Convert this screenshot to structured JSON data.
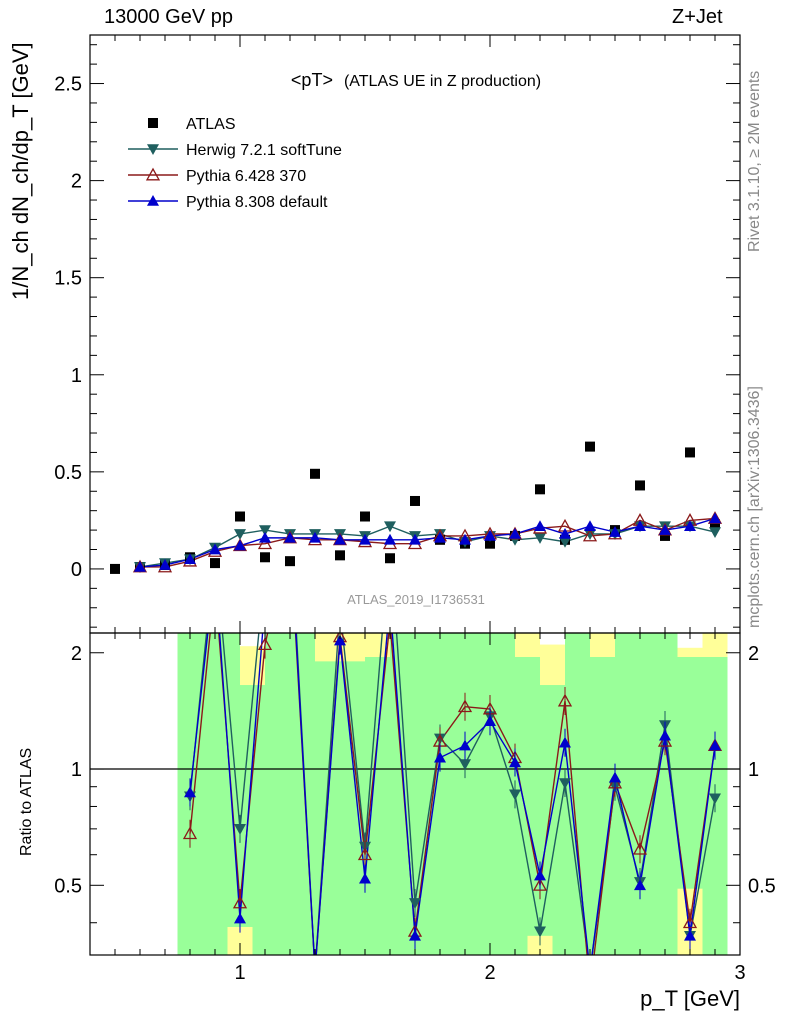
{
  "header": {
    "left": "13000 GeV pp",
    "right": "Z+Jet"
  },
  "side_labels": {
    "rivet": "Rivet 3.1.10, ≥ 2M events",
    "mcplots": "mcplots.cern.ch [arXiv:1306.3436]"
  },
  "chart_data": {
    "type": "scatter",
    "title_main": "<pT>",
    "title_sub": "(ATLAS UE in Z production)",
    "analysis_label": "ATLAS_2019_I1736531",
    "upper_ylabel": "1/N_ch dN_ch/dp_T [GeV]",
    "ratio_ylabel": "Ratio to ATLAS",
    "xlabel": "p_T [GeV]",
    "xlim": [
      0.4,
      3.0
    ],
    "upper_ylim": [
      -0.33,
      2.75
    ],
    "ratio_ylim": [
      0.33,
      2.25
    ],
    "x_ticks": [
      "1",
      "2",
      "3"
    ],
    "upper_y_ticks": [
      "0",
      "0.5",
      "1",
      "1.5",
      "2",
      "2.5"
    ],
    "ratio_y_ticks": [
      "0.5",
      "1",
      "2"
    ],
    "x": [
      0.5,
      0.6,
      0.7,
      0.8,
      0.9,
      1.0,
      1.1,
      1.2,
      1.3,
      1.4,
      1.5,
      1.6,
      1.7,
      1.8,
      1.9,
      2.0,
      2.1,
      2.2,
      2.3,
      2.4,
      2.5,
      2.6,
      2.7,
      2.8,
      2.9
    ],
    "series": [
      {
        "name": "ATLAS",
        "marker": "square",
        "color": "#000000",
        "values": [
          0.0,
          0.01,
          0.02,
          0.06,
          0.03,
          0.27,
          0.06,
          0.04,
          0.49,
          0.07,
          0.27,
          0.055,
          0.35,
          0.15,
          0.13,
          0.13,
          0.17,
          0.41,
          0.15,
          0.63,
          0.2,
          0.43,
          0.17,
          0.6,
          0.23
        ]
      },
      {
        "name": "Herwig 7.2.1 softTune",
        "marker": "triangle-down",
        "color": "#1f5f5f",
        "values": [
          null,
          0.01,
          0.03,
          0.05,
          0.11,
          0.18,
          0.2,
          0.18,
          0.18,
          0.18,
          0.17,
          0.22,
          0.17,
          0.18,
          0.14,
          0.17,
          0.15,
          0.16,
          0.14,
          0.18,
          0.18,
          0.22,
          0.22,
          0.22,
          0.19
        ]
      },
      {
        "name": "Pythia 6.428 370",
        "marker": "triangle-open",
        "color": "#8b1a1a",
        "values": [
          null,
          0.01,
          0.01,
          0.04,
          0.09,
          0.12,
          0.13,
          0.16,
          0.15,
          0.15,
          0.14,
          0.13,
          0.13,
          0.17,
          0.17,
          0.18,
          0.18,
          0.21,
          0.22,
          0.17,
          0.18,
          0.25,
          0.2,
          0.25,
          0.26
        ]
      },
      {
        "name": "Pythia 8.308 default",
        "marker": "triangle-up",
        "color": "#0000cc",
        "values": [
          null,
          0.01,
          0.02,
          0.05,
          0.1,
          0.12,
          0.16,
          0.16,
          0.16,
          0.15,
          0.15,
          0.15,
          0.15,
          0.16,
          0.15,
          0.17,
          0.18,
          0.22,
          0.18,
          0.22,
          0.19,
          0.22,
          0.2,
          0.22,
          0.26
        ]
      }
    ],
    "ratio_series": [
      {
        "name": "Herwig 7.2.1 softTune",
        "values": [
          null,
          null,
          null,
          0.85,
          3.7,
          0.7,
          3.3,
          4.5,
          0.3,
          2.6,
          0.63,
          4.0,
          0.45,
          1.2,
          1.03,
          1.37,
          0.86,
          0.38,
          0.92,
          0.3,
          0.9,
          0.51,
          1.3,
          0.37,
          0.84
        ]
      },
      {
        "name": "Pythia 6.428 370",
        "values": [
          null,
          null,
          null,
          0.68,
          3.0,
          0.45,
          2.1,
          4.0,
          0.3,
          2.2,
          0.6,
          2.4,
          0.38,
          1.18,
          1.45,
          1.43,
          1.07,
          0.5,
          1.5,
          0.27,
          0.92,
          0.62,
          1.18,
          0.4,
          1.15
        ]
      },
      {
        "name": "Pythia 8.308 default",
        "values": [
          null,
          null,
          null,
          0.87,
          3.3,
          0.41,
          2.7,
          4.2,
          0.3,
          2.15,
          0.52,
          2.7,
          0.37,
          1.07,
          1.15,
          1.33,
          1.04,
          0.53,
          1.17,
          0.3,
          0.95,
          0.5,
          1.22,
          0.37,
          1.15
        ]
      }
    ],
    "uncertainty_bands": {
      "green_color": "#99ff99",
      "yellow_color": "#ffff99",
      "x_range": [
        0.75,
        2.95
      ]
    },
    "grid": false,
    "legend_position": "top-left"
  }
}
